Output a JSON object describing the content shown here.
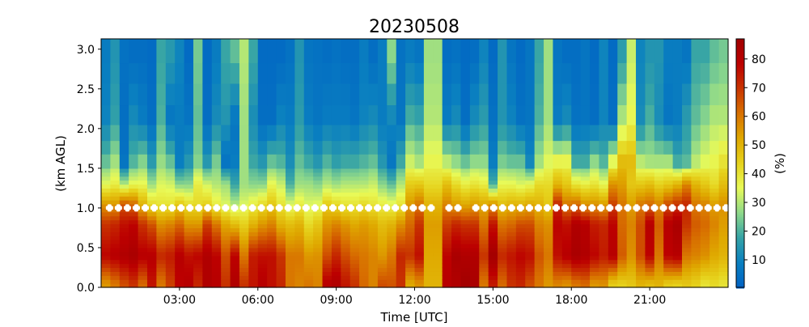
{
  "chart_data": {
    "type": "heatmap",
    "title": "20230508",
    "xlabel": "Time [UTC]",
    "ylabel": "(km AGL)",
    "colorbar_label": "(%)",
    "xlim_h": [
      0,
      24
    ],
    "ylim_km": [
      0,
      3.13
    ],
    "clim": [
      0.4,
      87
    ],
    "x_ticks": [
      {
        "h": 3,
        "label": "03:00"
      },
      {
        "h": 6,
        "label": "06:00"
      },
      {
        "h": 9,
        "label": "09:00"
      },
      {
        "h": 12,
        "label": "12:00"
      },
      {
        "h": 15,
        "label": "15:00"
      },
      {
        "h": 18,
        "label": "18:00"
      },
      {
        "h": 21,
        "label": "21:00"
      }
    ],
    "y_ticks": [
      {
        "v": 0,
        "label": "0.0"
      },
      {
        "v": 0.5,
        "label": "0.5"
      },
      {
        "v": 1,
        "label": "1.0"
      },
      {
        "v": 1.5,
        "label": "1.5"
      },
      {
        "v": 2,
        "label": "2.0"
      },
      {
        "v": 2.5,
        "label": "2.5"
      },
      {
        "v": 3,
        "label": "3.0"
      }
    ],
    "c_ticks": [
      {
        "v": 10,
        "label": "10"
      },
      {
        "v": 20,
        "label": "20"
      },
      {
        "v": 30,
        "label": "30"
      },
      {
        "v": 40,
        "label": "40"
      },
      {
        "v": 50,
        "label": "50"
      },
      {
        "v": 60,
        "label": "60"
      },
      {
        "v": 70,
        "label": "70"
      },
      {
        "v": 80,
        "label": "80"
      }
    ],
    "colormap": [
      {
        "v": 0.0,
        "c": "#0062c4"
      },
      {
        "v": 0.1,
        "c": "#0a80c0"
      },
      {
        "v": 0.2,
        "c": "#35a3a6"
      },
      {
        "v": 0.3,
        "c": "#8fd98a"
      },
      {
        "v": 0.4,
        "c": "#e8fa58"
      },
      {
        "v": 0.5,
        "c": "#e6d21c"
      },
      {
        "v": 0.6,
        "c": "#dfa800"
      },
      {
        "v": 0.7,
        "c": "#d87000"
      },
      {
        "v": 0.8,
        "c": "#c83400"
      },
      {
        "v": 0.9,
        "c": "#bc0000"
      },
      {
        "v": 1.0,
        "c": "#a00000"
      }
    ],
    "levels_km": [
      0.05,
      0.4,
      0.8,
      1.05,
      1.3,
      1.6,
      2.1,
      2.9
    ],
    "columns": [
      [
        55,
        78,
        70,
        55,
        35,
        22,
        10,
        8
      ],
      [
        60,
        80,
        72,
        55,
        38,
        28,
        17,
        14
      ],
      [
        66,
        82,
        76,
        65,
        30,
        5,
        4,
        5
      ],
      [
        70,
        84,
        78,
        62,
        36,
        20,
        12,
        4
      ],
      [
        62,
        80,
        70,
        50,
        36,
        25,
        8,
        4
      ],
      [
        75,
        80,
        65,
        42,
        28,
        15,
        4,
        3
      ],
      [
        60,
        72,
        56,
        40,
        34,
        27,
        20,
        18
      ],
      [
        68,
        74,
        58,
        40,
        33,
        22,
        6,
        15
      ],
      [
        78,
        80,
        62,
        46,
        26,
        8,
        8,
        10
      ],
      [
        80,
        76,
        55,
        42,
        26,
        14,
        6,
        3
      ],
      [
        72,
        78,
        55,
        42,
        38,
        25,
        22,
        24
      ],
      [
        82,
        82,
        68,
        44,
        33,
        14,
        4,
        3
      ],
      [
        80,
        78,
        60,
        38,
        30,
        24,
        12,
        8
      ],
      [
        70,
        66,
        52,
        34,
        28,
        5,
        14,
        18
      ],
      [
        82,
        78,
        48,
        30,
        18,
        8,
        6,
        22
      ],
      [
        70,
        60,
        44,
        34,
        28,
        28,
        28,
        30
      ],
      [
        75,
        74,
        50,
        38,
        26,
        18,
        12,
        18
      ],
      [
        80,
        76,
        55,
        42,
        26,
        14,
        4,
        3
      ],
      [
        76,
        76,
        58,
        46,
        36,
        22,
        4,
        3
      ],
      [
        72,
        70,
        50,
        40,
        32,
        20,
        10,
        3
      ],
      [
        60,
        60,
        48,
        34,
        20,
        12,
        8,
        5
      ],
      [
        58,
        60,
        50,
        38,
        28,
        22,
        16,
        14
      ],
      [
        60,
        55,
        42,
        34,
        28,
        18,
        8,
        6
      ],
      [
        58,
        56,
        46,
        35,
        26,
        14,
        6,
        5
      ],
      [
        80,
        66,
        55,
        45,
        30,
        20,
        8,
        4
      ],
      [
        82,
        72,
        58,
        42,
        28,
        16,
        8,
        5
      ],
      [
        75,
        66,
        55,
        40,
        30,
        18,
        8,
        4
      ],
      [
        70,
        62,
        52,
        40,
        30,
        18,
        6,
        4
      ],
      [
        62,
        60,
        54,
        42,
        30,
        20,
        10,
        8
      ],
      [
        58,
        58,
        52,
        40,
        32,
        22,
        12,
        4
      ],
      [
        66,
        55,
        48,
        38,
        26,
        14,
        8,
        8
      ],
      [
        65,
        60,
        50,
        36,
        22,
        6,
        10,
        26
      ],
      [
        70,
        72,
        56,
        40,
        30,
        18,
        6,
        5
      ],
      [
        52,
        70,
        62,
        55,
        45,
        32,
        20,
        8
      ],
      [
        56,
        76,
        70,
        60,
        46,
        28,
        18,
        6
      ],
      [
        50,
        52,
        54,
        50,
        42,
        36,
        30,
        28
      ],
      [
        50,
        52,
        54,
        50,
        42,
        36,
        30,
        28
      ],
      [
        80,
        78,
        68,
        58,
        48,
        30,
        8,
        4
      ],
      [
        82,
        84,
        72,
        54,
        42,
        26,
        12,
        5
      ],
      [
        86,
        82,
        70,
        52,
        38,
        22,
        4,
        3
      ],
      [
        84,
        82,
        70,
        54,
        40,
        26,
        12,
        4
      ],
      [
        60,
        70,
        60,
        52,
        38,
        26,
        16,
        10
      ],
      [
        74,
        86,
        75,
        56,
        20,
        8,
        5,
        3
      ],
      [
        62,
        72,
        60,
        48,
        36,
        24,
        14,
        14
      ],
      [
        70,
        75,
        62,
        50,
        36,
        22,
        10,
        6
      ],
      [
        72,
        78,
        66,
        50,
        34,
        22,
        5,
        3
      ],
      [
        66,
        76,
        66,
        52,
        36,
        10,
        6,
        6
      ],
      [
        60,
        65,
        58,
        50,
        42,
        28,
        20,
        18
      ],
      [
        55,
        60,
        56,
        46,
        42,
        34,
        28,
        28
      ],
      [
        58,
        76,
        78,
        72,
        50,
        36,
        8,
        6
      ],
      [
        56,
        80,
        76,
        60,
        46,
        36,
        12,
        4
      ],
      [
        60,
        84,
        82,
        62,
        40,
        18,
        5,
        4
      ],
      [
        62,
        82,
        80,
        56,
        38,
        18,
        6,
        6
      ],
      [
        55,
        78,
        74,
        56,
        40,
        26,
        4,
        3
      ],
      [
        56,
        74,
        72,
        54,
        36,
        20,
        10,
        10
      ],
      [
        45,
        80,
        78,
        68,
        56,
        34,
        4,
        3
      ],
      [
        44,
        64,
        62,
        60,
        54,
        48,
        30,
        16
      ],
      [
        46,
        56,
        58,
        54,
        46,
        48,
        36,
        32
      ],
      [
        50,
        66,
        66,
        60,
        46,
        30,
        12,
        10
      ],
      [
        48,
        78,
        80,
        62,
        48,
        28,
        20,
        14
      ],
      [
        50,
        60,
        64,
        58,
        44,
        28,
        12,
        14
      ],
      [
        45,
        78,
        80,
        66,
        46,
        28,
        6,
        8
      ],
      [
        44,
        80,
        84,
        70,
        50,
        18,
        8,
        8
      ],
      [
        46,
        60,
        70,
        72,
        58,
        20,
        16,
        6
      ],
      [
        44,
        58,
        64,
        60,
        50,
        30,
        22,
        18
      ],
      [
        40,
        56,
        62,
        58,
        46,
        34,
        26,
        18
      ],
      [
        42,
        52,
        58,
        54,
        42,
        36,
        30,
        22
      ],
      [
        40,
        50,
        54,
        56,
        48,
        40,
        30,
        24
      ]
    ],
    "markers": {
      "height_km": 1.0,
      "t_start_h": 0.32,
      "t_step_h": 0.342,
      "count": 70,
      "missing": [
        37,
        40
      ],
      "color": "#ffffff"
    }
  }
}
